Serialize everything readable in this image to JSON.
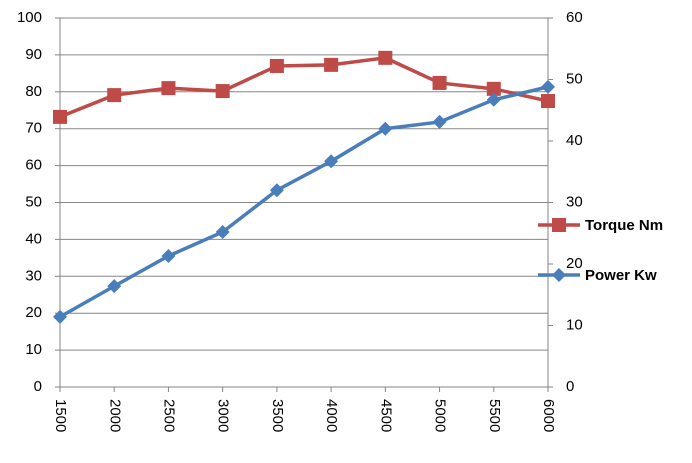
{
  "chart_data": {
    "type": "line",
    "x": [
      1500,
      2000,
      2500,
      3000,
      3500,
      4000,
      4500,
      5000,
      5500,
      6000
    ],
    "xlim": [
      1500,
      6000
    ],
    "xticks": [
      1500,
      2000,
      2500,
      3000,
      3500,
      4000,
      4500,
      5000,
      5500,
      6000
    ],
    "ylim": [
      0,
      100
    ],
    "yticks": [
      0,
      10,
      20,
      30,
      40,
      50,
      60,
      70,
      80,
      90,
      100
    ],
    "y2lim": [
      0,
      60
    ],
    "y2ticks": [
      0,
      10,
      20,
      30,
      40,
      50,
      60
    ],
    "grid": true,
    "legend": "right",
    "series": [
      {
        "name": "Torque Nm",
        "color": "#be4b48",
        "marker": "square",
        "values": [
          73.2,
          79.1,
          81,
          80.2,
          87,
          87.3,
          89.2,
          82.4,
          80.8,
          77.5
        ]
      },
      {
        "name": "Power Kw",
        "color": "#4a7ebb",
        "marker": "diamond",
        "axis": "y2",
        "values": [
          11.4,
          16.4,
          21.3,
          25.2,
          32,
          36.7,
          42,
          43.1,
          46.7,
          48.8
        ]
      }
    ]
  }
}
